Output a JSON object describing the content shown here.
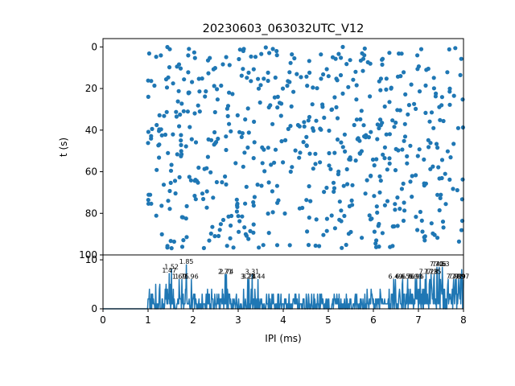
{
  "chart_data": [
    {
      "type": "scatter",
      "title": "20230603_063032UTC_V12",
      "xlabel": "",
      "ylabel": "t (s)",
      "xlim": [
        0,
        8
      ],
      "ylim": [
        100,
        -4
      ],
      "y_inverted": true,
      "yticks": [
        0,
        20,
        40,
        60,
        80,
        100
      ],
      "marker_color": "#1f77b4",
      "grid": false,
      "point_count": 600,
      "description_source": "raster of inter-pulse intervals between x=1.0 and x=8.0 over t=0..97 s"
    },
    {
      "type": "line",
      "title": "",
      "xlabel": "IPI (ms)",
      "ylabel": "",
      "xlim": [
        0,
        8
      ],
      "ylim": [
        0,
        11
      ],
      "xticks": [
        0,
        1,
        2,
        3,
        4,
        5,
        6,
        7,
        8
      ],
      "yticks": [
        0,
        10
      ],
      "line_color": "#1f77b4",
      "grid": false,
      "peaks": [
        {
          "x": 1.47,
          "y": 7.2,
          "label": "1.47"
        },
        {
          "x": 1.52,
          "y": 8.0,
          "label": "1.52"
        },
        {
          "x": 1.69,
          "y": 6.0,
          "label": "1.69"
        },
        {
          "x": 1.75,
          "y": 6.0,
          "label": "1.75"
        },
        {
          "x": 1.85,
          "y": 9.0,
          "label": "1.85"
        },
        {
          "x": 1.96,
          "y": 6.0,
          "label": "1.96"
        },
        {
          "x": 2.71,
          "y": 7.0,
          "label": "2.71"
        },
        {
          "x": 2.74,
          "y": 7.0,
          "label": "2.74"
        },
        {
          "x": 3.21,
          "y": 6.0,
          "label": "3.21"
        },
        {
          "x": 3.24,
          "y": 6.0,
          "label": "3.24"
        },
        {
          "x": 3.31,
          "y": 7.0,
          "label": "3.31"
        },
        {
          "x": 3.44,
          "y": 6.0,
          "label": "3.44"
        },
        {
          "x": 6.49,
          "y": 6.0,
          "label": "6.49"
        },
        {
          "x": 6.65,
          "y": 6.0,
          "label": "6.65"
        },
        {
          "x": 6.76,
          "y": 6.0,
          "label": "6.76"
        },
        {
          "x": 6.93,
          "y": 6.0,
          "label": "6.93"
        },
        {
          "x": 6.96,
          "y": 6.0,
          "label": "6.96"
        },
        {
          "x": 7.17,
          "y": 7.0,
          "label": "7.17"
        },
        {
          "x": 7.28,
          "y": 7.0,
          "label": "7.28"
        },
        {
          "x": 7.35,
          "y": 7.0,
          "label": "7.35"
        },
        {
          "x": 7.41,
          "y": 8.5,
          "label": "7.41"
        },
        {
          "x": 7.46,
          "y": 8.5,
          "label": "7.46"
        },
        {
          "x": 7.53,
          "y": 8.5,
          "label": "7.53"
        },
        {
          "x": 7.78,
          "y": 6.0,
          "label": "7.78"
        },
        {
          "x": 7.82,
          "y": 6.0,
          "label": "7.82"
        },
        {
          "x": 7.89,
          "y": 6.0,
          "label": "7.89"
        },
        {
          "x": 7.97,
          "y": 6.0,
          "label": "7.97"
        }
      ]
    }
  ]
}
